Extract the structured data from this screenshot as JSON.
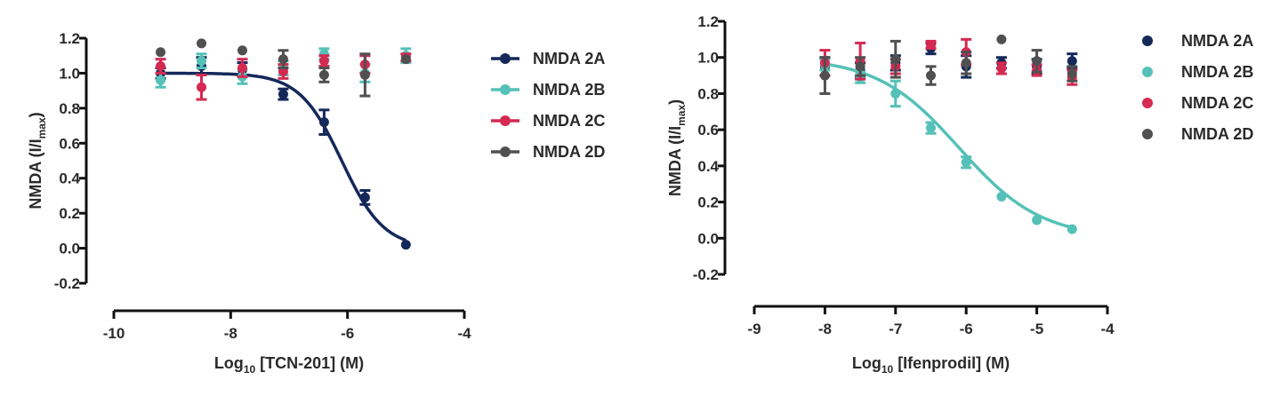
{
  "chart_data": [
    {
      "type": "scatter",
      "xlabel_prefix": "Log",
      "xlabel_sub": "10",
      "xlabel_rest": " [TCN-201] (M)",
      "ylabel_prefix": "NMDA (I/I",
      "ylabel_sub": "max",
      "ylabel_suffix": ")",
      "xlim": [
        -10,
        -4
      ],
      "ylim": [
        -0.2,
        1.2
      ],
      "xticks": [
        "-10",
        "-8",
        "-6",
        "-4"
      ],
      "yticks": [
        "-0.2",
        "0.0",
        "0.2",
        "0.4",
        "0.6",
        "0.8",
        "1.0",
        "1.2"
      ],
      "legend_position": "right",
      "legend_style": "line-marker",
      "series": [
        {
          "name": "NMDA 2A",
          "color": "#14285a",
          "x": [
            -9.2,
            -8.5,
            -7.8,
            -7.1,
            -6.4,
            -5.7,
            -5.0
          ],
          "y": [
            1.0,
            1.04,
            1.02,
            0.88,
            0.72,
            0.29,
            0.02
          ],
          "err": [
            0.03,
            0.05,
            0.04,
            0.03,
            0.07,
            0.04,
            0.0
          ],
          "fit": {
            "top": 1.0,
            "bottom": 0.0,
            "log_ic50": -6.1,
            "hill": 1.2
          }
        },
        {
          "name": "NMDA 2B",
          "color": "#55c1b8",
          "x": [
            -9.2,
            -8.5,
            -7.8,
            -7.1,
            -6.4,
            -5.7,
            -5.0
          ],
          "y": [
            0.96,
            1.07,
            0.98,
            1.03,
            1.11,
            1.0,
            1.1
          ],
          "err": [
            0.04,
            0.04,
            0.04,
            0.04,
            0.03,
            0.05,
            0.04
          ]
        },
        {
          "name": "NMDA 2C",
          "color": "#d42a52",
          "x": [
            -9.2,
            -8.5,
            -7.8,
            -7.1,
            -6.4,
            -5.7,
            -5.0
          ],
          "y": [
            1.04,
            0.92,
            1.03,
            1.01,
            1.07,
            1.05,
            1.09
          ],
          "err": [
            0.04,
            0.07,
            0.05,
            0.04,
            0.03,
            0.05,
            0.02
          ]
        },
        {
          "name": "NMDA 2D",
          "color": "#505050",
          "x": [
            -9.2,
            -8.5,
            -7.8,
            -7.1,
            -6.4,
            -5.7,
            -5.0
          ],
          "y": [
            1.12,
            1.17,
            1.13,
            1.08,
            0.99,
            0.99,
            1.08
          ],
          "err": [
            0.0,
            0.0,
            0.0,
            0.05,
            0.04,
            0.12,
            0.0
          ]
        }
      ]
    },
    {
      "type": "scatter",
      "xlabel_prefix": "Log",
      "xlabel_sub": "10",
      "xlabel_rest": " [Ifenprodil] (M)",
      "ylabel_prefix": "NMDA (I/I",
      "ylabel_sub": "max",
      "ylabel_suffix": ")",
      "xlim": [
        -9,
        -4
      ],
      "ylim": [
        -0.2,
        1.2
      ],
      "xticks": [
        "-9",
        "-8",
        "-7",
        "-6",
        "-5",
        "-4"
      ],
      "yticks": [
        "-0.2",
        "0.0",
        "0.2",
        "0.4",
        "0.6",
        "0.8",
        "1.0",
        "1.2"
      ],
      "legend_position": "right",
      "legend_style": "marker",
      "series": [
        {
          "name": "NMDA 2A",
          "color": "#14285a",
          "x": [
            -8.0,
            -7.5,
            -7.0,
            -6.5,
            -6.0,
            -5.5,
            -5.0,
            -4.5
          ],
          "y": [
            0.95,
            0.93,
            0.97,
            1.05,
            0.95,
            0.97,
            0.95,
            0.98
          ],
          "err": [
            0.05,
            0.04,
            0.04,
            0.03,
            0.06,
            0.03,
            0.04,
            0.04
          ]
        },
        {
          "name": "NMDA 2B",
          "color": "#55c1b8",
          "x": [
            -8.0,
            -7.5,
            -7.0,
            -6.5,
            -6.0,
            -5.5,
            -5.0,
            -4.5
          ],
          "y": [
            0.96,
            0.89,
            0.8,
            0.61,
            0.42,
            0.23,
            0.1,
            0.05
          ],
          "err": [
            0.03,
            0.03,
            0.07,
            0.03,
            0.03,
            0.0,
            0.0,
            0.0
          ],
          "fit": {
            "top": 1.0,
            "bottom": 0.0,
            "log_ic50": -6.1,
            "hill": 0.75
          }
        },
        {
          "name": "NMDA 2C",
          "color": "#d42a52",
          "x": [
            -8.0,
            -7.5,
            -7.0,
            -6.5,
            -6.0,
            -5.5,
            -5.0,
            -4.5
          ],
          "y": [
            0.97,
            0.98,
            0.95,
            1.07,
            1.03,
            0.94,
            0.93,
            0.89
          ],
          "err": [
            0.07,
            0.1,
            0.04,
            0.02,
            0.07,
            0.03,
            0.03,
            0.04
          ]
        },
        {
          "name": "NMDA 2D",
          "color": "#505050",
          "x": [
            -8.0,
            -7.5,
            -7.0,
            -6.5,
            -6.0,
            -5.5,
            -5.0,
            -4.5
          ],
          "y": [
            0.9,
            0.95,
            0.99,
            0.9,
            0.97,
            1.1,
            0.98,
            0.91
          ],
          "err": [
            0.1,
            0.05,
            0.1,
            0.05,
            0.06,
            0.0,
            0.06,
            0.04
          ]
        }
      ]
    }
  ]
}
